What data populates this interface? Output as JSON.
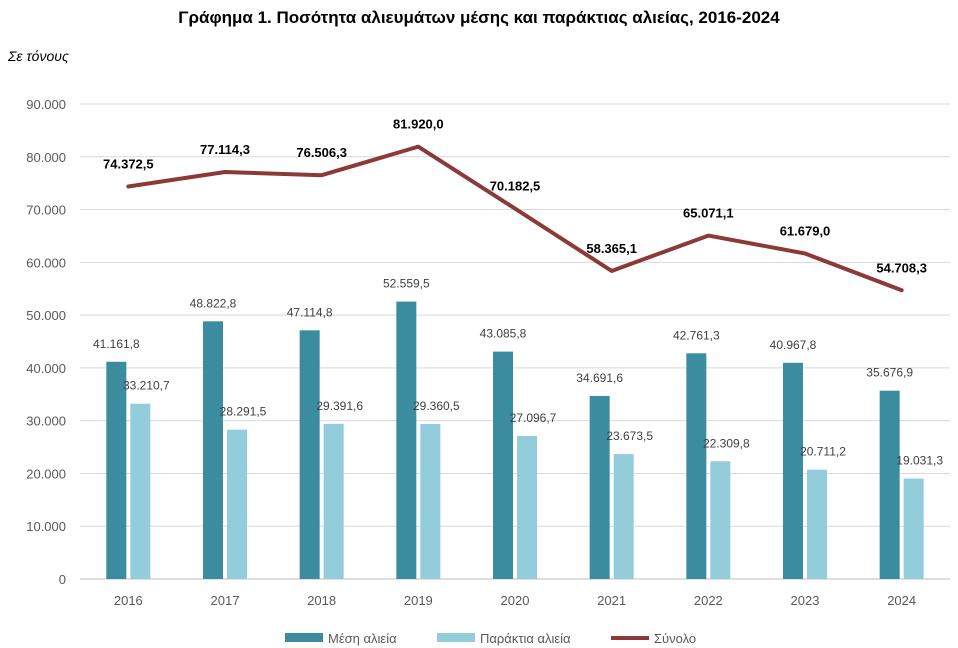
{
  "title": "Γράφημα 1. Ποσότητα αλιευμάτων μέσης και παράκτιας αλιείας, 2016-2024",
  "unit": "Σε τόνους",
  "colors": {
    "medium": "#3c8ca0",
    "coastal": "#93cddc",
    "total": "#8b3a37",
    "grid": "#d9d9d9"
  },
  "chart_data": {
    "type": "bar",
    "title": "Γράφημα 1. Ποσότητα αλιευμάτων μέσης και παράκτιας αλιείας, 2016-2024",
    "ylabel": "Σε τόνους",
    "categories": [
      "2016",
      "2017",
      "2018",
      "2019",
      "2020",
      "2021",
      "2022",
      "2023",
      "2024"
    ],
    "ylim": [
      0,
      90000
    ],
    "yticks": [
      0,
      10000,
      20000,
      30000,
      40000,
      50000,
      60000,
      70000,
      80000,
      90000
    ],
    "ytick_labels": [
      "0",
      "10.000",
      "20.000",
      "30.000",
      "40.000",
      "50.000",
      "60.000",
      "70.000",
      "80.000",
      "90.000"
    ],
    "grid": true,
    "legend_position": "bottom",
    "series": [
      {
        "name": "Μέση αλιεία",
        "type": "bar",
        "color": "#3c8ca0",
        "values": [
          41161.8,
          48822.8,
          47114.8,
          52559.5,
          43085.8,
          34691.6,
          42761.3,
          40967.8,
          35676.9
        ],
        "labels": [
          "41.161,8",
          "48.822,8",
          "47.114,8",
          "52.559,5",
          "43.085,8",
          "34.691,6",
          "42.761,3",
          "40.967,8",
          "35.676,9"
        ]
      },
      {
        "name": "Παράκτια αλιεία",
        "type": "bar",
        "color": "#93cddc",
        "values": [
          33210.7,
          28291.5,
          29391.6,
          29360.5,
          27096.7,
          23673.5,
          22309.8,
          20711.2,
          19031.3
        ],
        "labels": [
          "33.210,7",
          "28.291,5",
          "29.391,6",
          "29.360,5",
          "27.096,7",
          "23.673,5",
          "22.309,8",
          "20.711,2",
          "19.031,3"
        ]
      },
      {
        "name": "Σύνολο",
        "type": "line",
        "color": "#8b3a37",
        "values": [
          74372.5,
          77114.3,
          76506.3,
          81920.0,
          70182.5,
          58365.1,
          65071.1,
          61679.0,
          54708.3
        ],
        "labels": [
          "74.372,5",
          "77.114,3",
          "76.506,3",
          "81.920,0",
          "70.182,5",
          "58.365,1",
          "65.071,1",
          "61.679,0",
          "54.708,3"
        ]
      }
    ]
  }
}
